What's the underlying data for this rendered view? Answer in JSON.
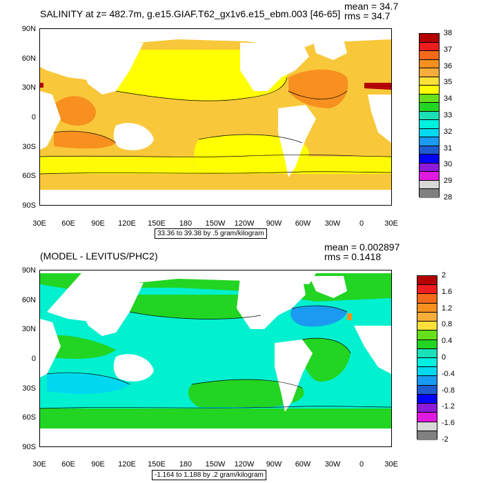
{
  "panel_top": {
    "title": "SALINITY at z= 482.7m, g.e15.GIAF.T62_gx1v6.e15_ebm.003 [46-65]",
    "mean": "mean = 34.7",
    "rms": "rms = 34.7",
    "info": "33.36 to 39.38 by .5 gram/kilogram",
    "colorbar_labels": [
      "38",
      "37",
      "36",
      "35",
      "34",
      "33",
      "32",
      "31",
      "30",
      "29",
      "28"
    ],
    "colorbar_colors": [
      "#b40000",
      "#ee1c1c",
      "#f56a1a",
      "#f7901f",
      "#f8ad3a",
      "#fde03a",
      "#ffff00",
      "#66e01a",
      "#22d522",
      "#1ae0b8",
      "#00f0e0",
      "#00d8f0",
      "#1a9af0",
      "#1f5bd0",
      "#0000ff",
      "#8c1ad8",
      "#e01ae0",
      "#d8d8d8",
      "#808080"
    ]
  },
  "panel_bottom": {
    "title": "(MODEL - LEVITUS/PHC2)",
    "mean": "mean = 0.002897",
    "rms": "rms = 0.1418",
    "info": "-1.164 to 1.188 by .2 gram/kilogram",
    "colorbar_labels": [
      "2",
      "1.6",
      "1.2",
      "0.8",
      "0.4",
      "0",
      "-0.4",
      "-0.8",
      "-1.2",
      "-1.6",
      "-2"
    ],
    "colorbar_colors": [
      "#b40000",
      "#ee1c1c",
      "#f56a1a",
      "#f7901f",
      "#f8ad3a",
      "#fde03a",
      "#66e01a",
      "#22d522",
      "#1ae0b8",
      "#00f0e0",
      "#00d8f0",
      "#1a9af0",
      "#1f5bd0",
      "#0000ff",
      "#8c1ad8",
      "#e01ae0",
      "#d8d8d8",
      "#808080"
    ]
  },
  "axes": {
    "y_labels": [
      "90N",
      "60N",
      "30N",
      "0",
      "30S",
      "60S",
      "90S"
    ],
    "x_labels": [
      "30E",
      "60E",
      "90E",
      "120E",
      "150E",
      "180",
      "150W",
      "120W",
      "90W",
      "60W",
      "30W",
      "0",
      "30E"
    ]
  },
  "colors": {
    "land": "#ffffff",
    "top_ocean_main": "#f8c83a",
    "top_ocean_fresh": "#ffff00",
    "top_ocean_salty": "#f7901f",
    "top_ocean_max": "#b40000",
    "bot_ocean_main": "#00f0d0",
    "bot_ocean_pos": "#22d522",
    "bot_ocean_neg": "#00d8f0"
  }
}
